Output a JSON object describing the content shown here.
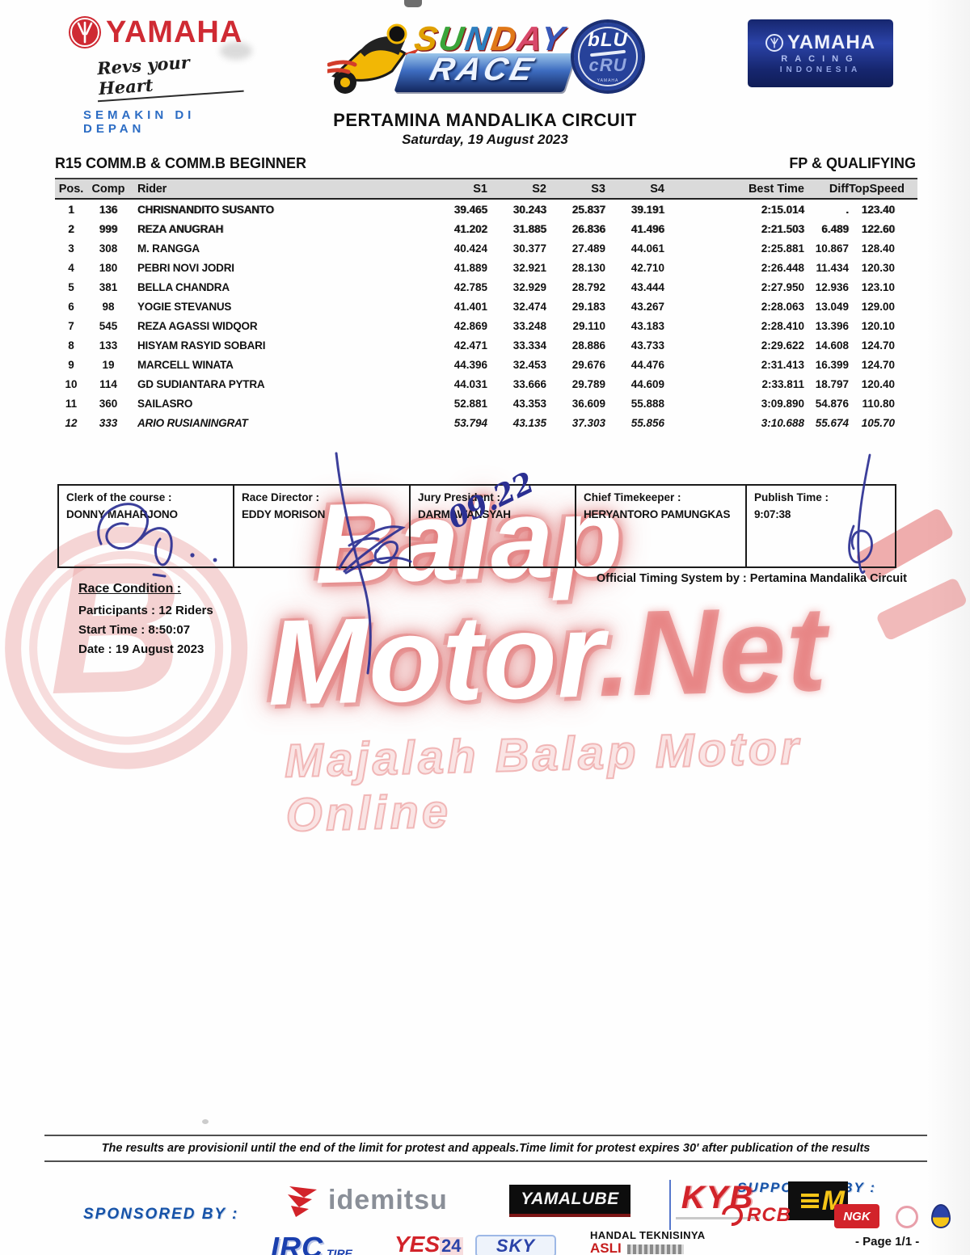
{
  "header": {
    "left": {
      "brand": "YAMAHA",
      "tagline": "Revs your Heart",
      "subtitle": "SEMAKIN DI DEPAN"
    },
    "center": {
      "word1": "SUNDAY",
      "word2": "RACE",
      "letter_colors": [
        "#e0a000",
        "#3aa53a",
        "#2e7fbf",
        "#e07818",
        "#d8486a",
        "#3858b8"
      ]
    },
    "blucru": {
      "top": "bLU",
      "bottom": "cRU",
      "bottom_small": "YAMAHA"
    },
    "right": {
      "brand": "YAMAHA",
      "line2": "RACING",
      "line3": "INDONESIA"
    }
  },
  "title": {
    "circuit": "PERTAMINA MANDALIKA CIRCUIT",
    "date": "Saturday, 19 August 2023",
    "class_name": "R15 COMM.B & COMM.B BEGINNER",
    "session": "FP & QUALIFYING"
  },
  "results": {
    "columns": [
      "Pos.",
      "Comp",
      "Rider",
      "S1",
      "S2",
      "S3",
      "S4",
      "Best Time",
      "Diff",
      "TopSpeed"
    ],
    "rows": [
      {
        "pos": "1",
        "comp": "136",
        "rider": "CHRISNANDITO SUSANTO",
        "s1": "39.465",
        "s2": "30.243",
        "s3": "25.837",
        "s4": "39.191",
        "best": "2:15.014",
        "diff": ".",
        "top": "123.40",
        "italic": false
      },
      {
        "pos": "2",
        "comp": "999",
        "rider": "REZA ANUGRAH",
        "s1": "41.202",
        "s2": "31.885",
        "s3": "26.836",
        "s4": "41.496",
        "best": "2:21.503",
        "diff": "6.489",
        "top": "122.60",
        "italic": false
      },
      {
        "pos": "3",
        "comp": "308",
        "rider": "M. RANGGA",
        "s1": "40.424",
        "s2": "30.377",
        "s3": "27.489",
        "s4": "44.061",
        "best": "2:25.881",
        "diff": "10.867",
        "top": "128.40",
        "italic": false
      },
      {
        "pos": "4",
        "comp": "180",
        "rider": "PEBRI NOVI JODRI",
        "s1": "41.889",
        "s2": "32.921",
        "s3": "28.130",
        "s4": "42.710",
        "best": "2:26.448",
        "diff": "11.434",
        "top": "120.30",
        "italic": false
      },
      {
        "pos": "5",
        "comp": "381",
        "rider": "BELLA CHANDRA",
        "s1": "42.785",
        "s2": "32.929",
        "s3": "28.792",
        "s4": "43.444",
        "best": "2:27.950",
        "diff": "12.936",
        "top": "123.10",
        "italic": false
      },
      {
        "pos": "6",
        "comp": "98",
        "rider": "YOGIE STEVANUS",
        "s1": "41.401",
        "s2": "32.474",
        "s3": "29.183",
        "s4": "43.267",
        "best": "2:28.063",
        "diff": "13.049",
        "top": "129.00",
        "italic": false
      },
      {
        "pos": "7",
        "comp": "545",
        "rider": "REZA AGASSI WIDQOR",
        "s1": "42.869",
        "s2": "33.248",
        "s3": "29.110",
        "s4": "43.183",
        "best": "2:28.410",
        "diff": "13.396",
        "top": "120.10",
        "italic": false
      },
      {
        "pos": "8",
        "comp": "133",
        "rider": "HISYAM RASYID SOBARI",
        "s1": "42.471",
        "s2": "33.334",
        "s3": "28.886",
        "s4": "43.733",
        "best": "2:29.622",
        "diff": "14.608",
        "top": "124.70",
        "italic": false
      },
      {
        "pos": "9",
        "comp": "19",
        "rider": "MARCELL WINATA",
        "s1": "44.396",
        "s2": "32.453",
        "s3": "29.676",
        "s4": "44.476",
        "best": "2:31.413",
        "diff": "16.399",
        "top": "124.70",
        "italic": false
      },
      {
        "pos": "10",
        "comp": "114",
        "rider": "GD SUDIANTARA PYTRA",
        "s1": "44.031",
        "s2": "33.666",
        "s3": "29.789",
        "s4": "44.609",
        "best": "2:33.811",
        "diff": "18.797",
        "top": "120.40",
        "italic": false
      },
      {
        "pos": "11",
        "comp": "360",
        "rider": "SAILASRO",
        "s1": "52.881",
        "s2": "43.353",
        "s3": "36.609",
        "s4": "55.888",
        "best": "3:09.890",
        "diff": "54.876",
        "top": "110.80",
        "italic": false
      },
      {
        "pos": "12",
        "comp": "333",
        "rider": "ARIO RUSIANINGRAT",
        "s1": "53.794",
        "s2": "43.135",
        "s3": "37.303",
        "s4": "55.856",
        "best": "3:10.688",
        "diff": "55.674",
        "top": "105.70",
        "italic": true
      }
    ]
  },
  "officials": [
    {
      "label": "Clerk of the course :",
      "name": "DONNY MAHARJONO"
    },
    {
      "label": "Race Director :",
      "name": "EDDY MORISON"
    },
    {
      "label": "Jury President :",
      "name": "DARMAWANSYAH"
    },
    {
      "label": "Chief Timekeeper :",
      "name": "HERYANTORO PAMUNGKAS"
    },
    {
      "label": "Publish Time :",
      "name": "9:07:38"
    }
  ],
  "officials_extra": {
    "hand_note": "09.22"
  },
  "timing_note": "Official Timing System by : Pertamina Mandalika Circuit",
  "race_condition": {
    "heading": "Race Condition :",
    "participants": "Participants : 12 Riders",
    "start_time": "Start Time : 8:50:07",
    "date": "Date : 19 August 2023"
  },
  "watermark": {
    "line1": "Balap",
    "line2": "Motor",
    "line2b": ".Net",
    "tagline": "Majalah Balap Motor Online"
  },
  "footer": {
    "disclaimer": "The results are provisionil until the end of the limit for protest and appeals.Time limit for protest expires 30' after publication of the results",
    "sponsored_label": "SPONSORED BY :",
    "supported_label": "SUPPORTED BY :",
    "page_label": "- Page 1/1 -",
    "sponsors": {
      "idemitsu": "idemitsu",
      "yamalube": "YAMALUBE",
      "kyb": "KYB",
      "motul_m": "M",
      "irc": "IRC",
      "irc_sub": "TIRE",
      "yes": "YES",
      "yes_24": "24",
      "sky": "SKY",
      "handal_line1": "HANDAL TEKNISINYA",
      "handal_line2": "ASLI",
      "rcb": "RCB",
      "ngk": "NGK"
    }
  },
  "colors": {
    "yamaha_red": "#cf2a33",
    "blue_dark": "#16266e",
    "sponsor_blue": "#1552a8",
    "table_header_gray": "#dadada",
    "watermark_pink": "#e79292",
    "ink_blue": "#2b2f92"
  }
}
